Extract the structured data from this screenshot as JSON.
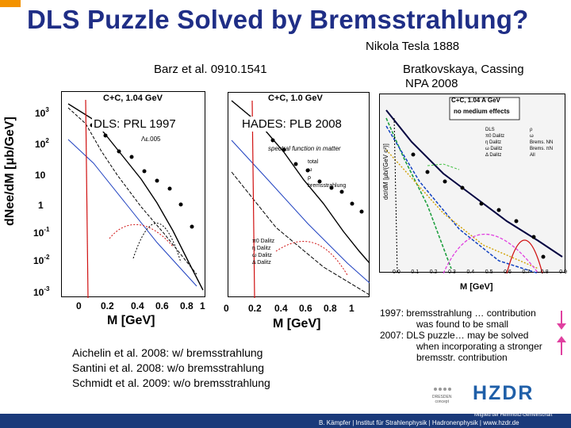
{
  "slide": {
    "title": "DLS Puzzle Solved by Bremsstrahlung?",
    "tesla": "Nikola Tesla 1888",
    "barz": "Barz et al. 0910.1541",
    "bratko_line1": "Bratkovskaya, Cassing",
    "bratko_line2": "NPA 2008",
    "left_panel": {
      "header": "C+C, 1.04 GeV",
      "label": "DLS: PRL 1997",
      "lambda_note": "Λε.005",
      "y_axis_label": "dNee/dM [μb/GeV]",
      "y_ticks": [
        "10",
        "3",
        "10",
        "2",
        "10",
        "1",
        "10",
        "-1",
        "10",
        "-2",
        "10",
        "-3"
      ],
      "x_ticks": [
        "0",
        "0.2",
        "0.4",
        "0.6",
        "0.8",
        "1"
      ],
      "x_label": "M [GeV]"
    },
    "mid_panel": {
      "header": "C+C, 1.0 GeV",
      "label": "HADES: PLB 2008",
      "note": "spectral function in matter",
      "legend": [
        "total",
        "ω",
        "ρ",
        "bremsstrahlung"
      ],
      "legend2": [
        "π0 Dalitz",
        "η Dalitz",
        "ω Dalitz",
        "Δ Dalitz"
      ],
      "x_ticks": [
        "0",
        "0.2",
        "0.4",
        "0.6",
        "0.8",
        "1"
      ],
      "x_label": "M [GeV]"
    },
    "right_panel": {
      "header_line1": "C+C, 1.04 A GeV",
      "header_line2": "no medium effects",
      "y_axis": "dσ/dM [μb/(GeV c²)]",
      "legend_left": [
        "DLS",
        "π0 Dalitz",
        "η Dalitz",
        "ω Dalitz",
        "Δ Dalitz"
      ],
      "legend_right": [
        "ρ",
        "ω",
        "Brems. NN",
        "Brems. πN",
        "All"
      ],
      "x_ticks": [
        "0.0",
        "0.1",
        "0.2",
        "0.3",
        "0.4",
        "0.5",
        "0.6",
        "0.7",
        "0.8",
        "0.9"
      ],
      "x_label": "M [GeV]"
    },
    "refs": [
      "Aichelin et al. 2008: w/ bremsstrahlung",
      "Santini et al. 2008: w/o bremsstrahlung",
      "Schmidt et al. 2009: w/o bremsstrahlung"
    ],
    "notes": [
      "1997: bremsstrahlung … contribution",
      "was found to be small",
      "2007: DLS puzzle… may be solved",
      "when incorporating a stronger",
      "bremsstr. contribution"
    ],
    "logo_hzdr": "HZDR",
    "dresden_line1": "DRESDEN",
    "dresden_line2": "concept",
    "member_text": "Mitglied der Helmholtz-Gemeinschaft",
    "footer": "B. Kämpfer | Institut für Strahlenphysik | Hadronenphysik | www.hzdr.de"
  },
  "colors": {
    "title": "#1f2e86",
    "accent_orange": "#f39200",
    "arrow": "#e040a0",
    "footer_band": "#1a3a7a"
  }
}
